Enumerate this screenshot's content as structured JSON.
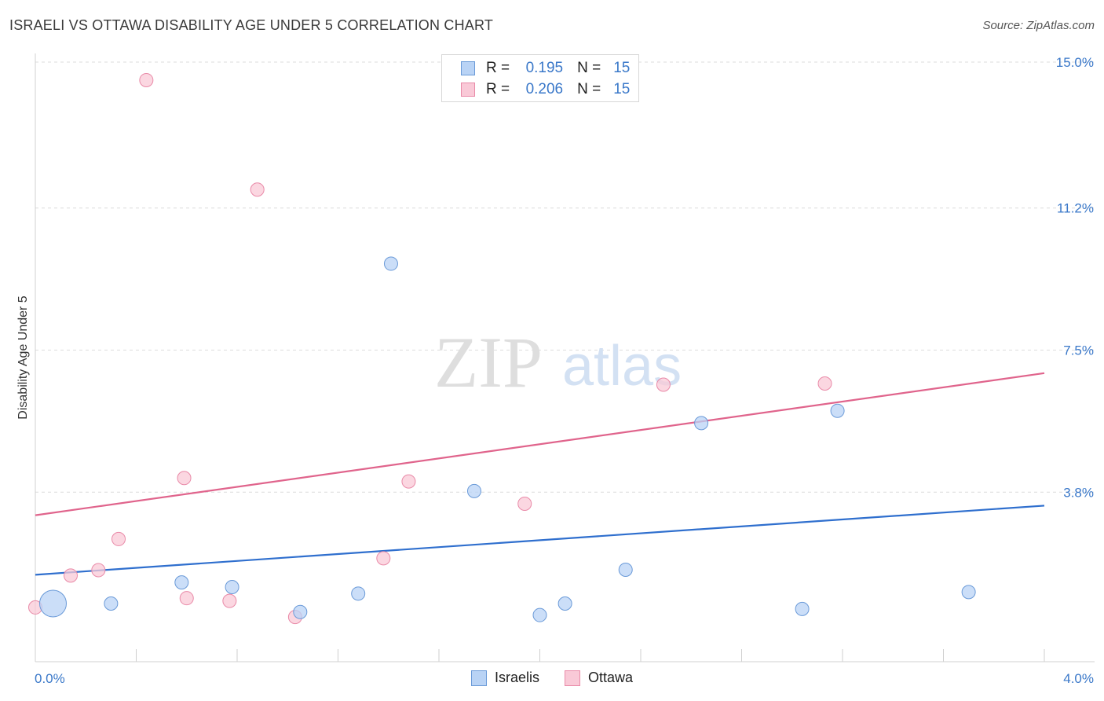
{
  "title": "ISRAELI VS OTTAWA DISABILITY AGE UNDER 5 CORRELATION CHART",
  "source": "Source: ZipAtlas.com",
  "watermark": {
    "zip": "ZIP",
    "atlas": "atlas"
  },
  "legend": {
    "rows": [
      {
        "r_label": "R =",
        "r_value": "0.195",
        "n_label": "N =",
        "n_value": "15"
      },
      {
        "r_label": "R =",
        "r_value": "0.206",
        "n_label": "N =",
        "n_value": "15"
      }
    ]
  },
  "colors": {
    "israelis_fill": "#b9d3f5",
    "israelis_stroke": "#6a9ad8",
    "israelis_line": "#2f6fce",
    "ottawa_fill": "#f9c9d7",
    "ottawa_stroke": "#e98aa8",
    "ottawa_line": "#e0648c",
    "accent_text": "#3a78c9",
    "grid": "#dcdcdc"
  },
  "chart_data": {
    "type": "scatter",
    "title": "ISRAELI VS OTTAWA DISABILITY AGE UNDER 5 CORRELATION CHART",
    "xlabel": "",
    "ylabel": "Disability Age Under 5",
    "xlim": [
      0.0,
      4.0
    ],
    "ylim": [
      0.0,
      15.0
    ],
    "x_tick_labels": [
      "0.0%",
      "4.0%"
    ],
    "y_ticks": [
      3.8,
      7.5,
      11.2,
      15.0
    ],
    "y_tick_labels": [
      "3.8%",
      "7.5%",
      "11.2%",
      "15.0%"
    ],
    "grid": true,
    "series": [
      {
        "name": "Israelis",
        "r": 0.195,
        "n": 15,
        "points": [
          {
            "x": 0.07,
            "y": 0.9,
            "size": "large"
          },
          {
            "x": 0.3,
            "y": 0.9
          },
          {
            "x": 0.58,
            "y": 1.45
          },
          {
            "x": 0.78,
            "y": 1.33
          },
          {
            "x": 1.05,
            "y": 0.68
          },
          {
            "x": 1.28,
            "y": 1.16
          },
          {
            "x": 1.41,
            "y": 9.75
          },
          {
            "x": 1.74,
            "y": 3.83
          },
          {
            "x": 2.0,
            "y": 0.6
          },
          {
            "x": 2.1,
            "y": 0.9
          },
          {
            "x": 2.34,
            "y": 1.78
          },
          {
            "x": 2.64,
            "y": 5.6
          },
          {
            "x": 3.04,
            "y": 0.76
          },
          {
            "x": 3.18,
            "y": 5.92
          },
          {
            "x": 3.7,
            "y": 1.2
          }
        ],
        "trend": [
          [
            0.0,
            1.65
          ],
          [
            4.0,
            3.45
          ]
        ]
      },
      {
        "name": "Ottawa",
        "r": 0.206,
        "n": 15,
        "points": [
          {
            "x": 0.0,
            "y": 0.8
          },
          {
            "x": 0.14,
            "y": 1.63
          },
          {
            "x": 0.25,
            "y": 1.77
          },
          {
            "x": 0.33,
            "y": 2.58
          },
          {
            "x": 0.44,
            "y": 14.53
          },
          {
            "x": 0.59,
            "y": 4.17
          },
          {
            "x": 0.6,
            "y": 1.04
          },
          {
            "x": 0.77,
            "y": 0.97
          },
          {
            "x": 0.88,
            "y": 11.68
          },
          {
            "x": 1.03,
            "y": 0.55
          },
          {
            "x": 1.38,
            "y": 2.08
          },
          {
            "x": 1.48,
            "y": 4.08
          },
          {
            "x": 1.94,
            "y": 3.5
          },
          {
            "x": 2.49,
            "y": 6.6
          },
          {
            "x": 3.13,
            "y": 6.63
          }
        ],
        "trend": [
          [
            0.0,
            3.2
          ],
          [
            4.0,
            6.9
          ]
        ]
      }
    ]
  }
}
